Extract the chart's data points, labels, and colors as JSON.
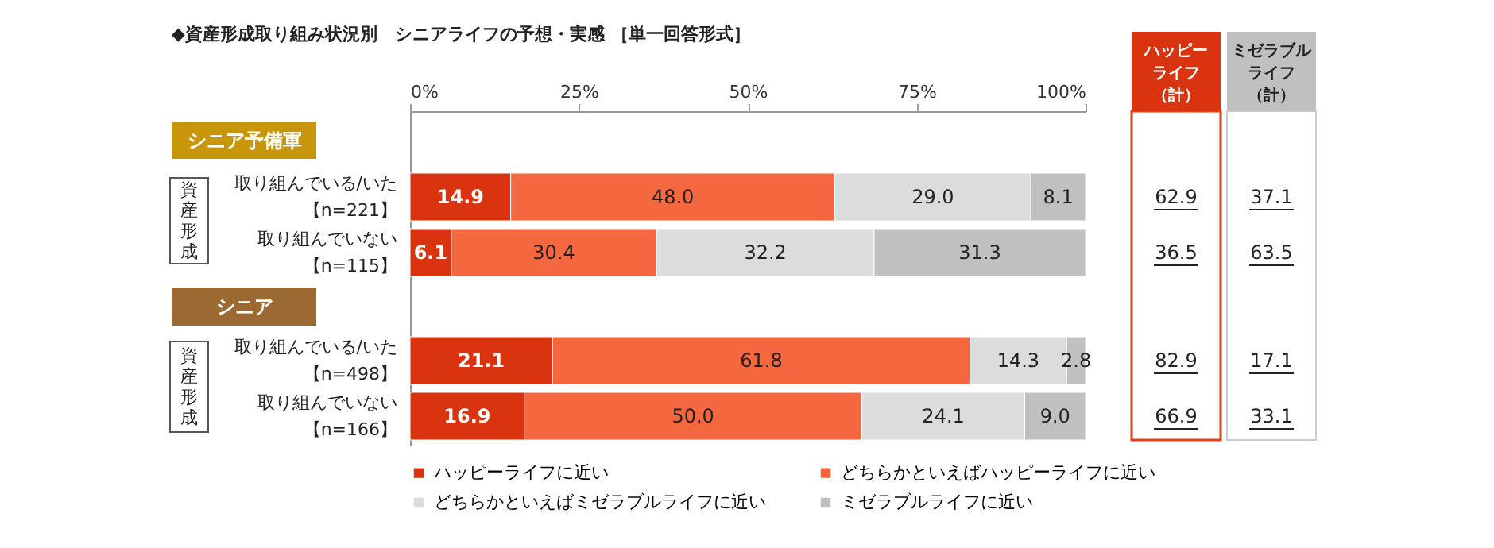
{
  "chart_data": {
    "type": "bar",
    "orientation": "horizontal",
    "stacked": true,
    "title": "◆資産形成取り組み状況別　シニアライフの予想・実感 ［単一回答形式］",
    "categories": [
      "取り組んでいる/いた【n=221】",
      "取り組んでいない【n=115】",
      "取り組んでいる/いた【n=498】",
      "取り組んでいない【n=166】"
    ],
    "series": [
      {
        "name": "ハッピーライフに近い",
        "color": "#d9340f",
        "values": [
          14.9,
          6.1,
          21.1,
          16.9
        ],
        "value_labels": [
          "14.9",
          "6.1",
          "21.1",
          "16.9"
        ]
      },
      {
        "name": "どちらかといえばハッピーライフに近い",
        "color": "#f5673f",
        "values": [
          48.0,
          30.4,
          61.8,
          50.0
        ],
        "value_labels": [
          "48.0",
          "30.4",
          "61.8",
          "50.0"
        ]
      },
      {
        "name": "どちらかといえばミゼラブルライフに近い",
        "color": "#dcdcdc",
        "values": [
          29.0,
          32.2,
          14.3,
          24.1
        ],
        "value_labels": [
          "29.0",
          "32.2",
          "14.3",
          "24.1"
        ]
      },
      {
        "name": "ミゼラブルライフに近い",
        "color": "#c0c0c0",
        "values": [
          8.1,
          31.3,
          2.8,
          9.0
        ],
        "value_labels": [
          "8.1",
          "31.3",
          "2.8",
          "9.0"
        ]
      }
    ],
    "xlim": [
      0,
      100
    ],
    "xticks": [
      {
        "value": 0,
        "label": "0%"
      },
      {
        "value": 25,
        "label": "25%"
      },
      {
        "value": 50,
        "label": "50%"
      },
      {
        "value": 75,
        "label": "75%"
      },
      {
        "value": 100,
        "label": "100%"
      }
    ],
    "grid": false,
    "legend": "bottom",
    "annotations": [
      "シニア予備軍",
      "シニア",
      "資産形成",
      "資産形成",
      "ハッピーライフ（計）",
      "62.9",
      "36.5",
      "82.9",
      "66.9",
      "ミゼラブルライフ（計）",
      "37.1",
      "63.5",
      "17.1",
      "33.1"
    ]
  }
}
